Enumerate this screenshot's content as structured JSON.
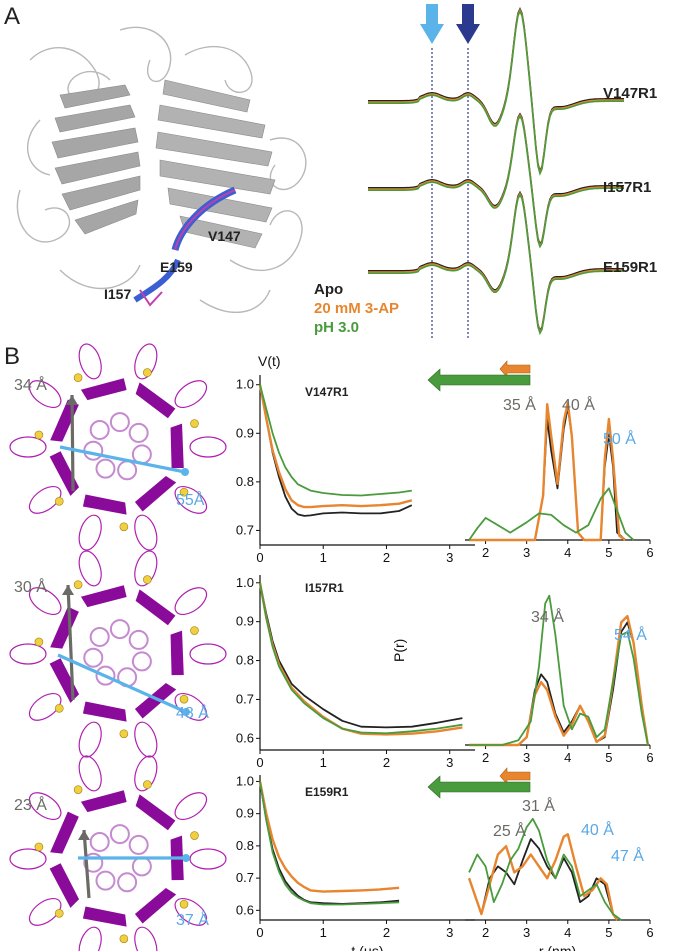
{
  "panel_a": {
    "letter": "A",
    "residue_labels": [
      "V147",
      "I157",
      "E159"
    ],
    "epr_spectra": [
      "V147R1",
      "I157R1",
      "E159R1"
    ],
    "legend": [
      {
        "label": "Apo",
        "color": "#222222"
      },
      {
        "label": "20 mM 3-AP",
        "color": "#e8862f"
      },
      {
        "label": "pH 3.0",
        "color": "#4a9b3d"
      }
    ],
    "arrow_colors": {
      "light": "#5ab4ea",
      "dark": "#2b3a8f"
    }
  },
  "panel_b": {
    "letter": "B",
    "rows": [
      {
        "mutant": "V147R1",
        "pore_short": "34 Å",
        "pore_long": "55Å",
        "peaks_gray": [
          "35 Å",
          "40 Å"
        ],
        "peaks_blue": [
          "50 Å"
        ]
      },
      {
        "mutant": "I157R1",
        "pore_short": "30 Å",
        "pore_long": "48 Å",
        "peaks_gray": [
          "34 Å"
        ],
        "peaks_blue": [
          "54 Å"
        ]
      },
      {
        "mutant": "E159R1",
        "pore_short": "23 Å",
        "pore_long": "37 Å",
        "peaks_gray": [
          "25 Å",
          "31 Å"
        ],
        "peaks_blue": [
          "40 Å",
          "47 Å"
        ]
      }
    ]
  },
  "chart_data": [
    {
      "type": "line",
      "title": "V147R1",
      "ylabel": "V(t)",
      "xlabel": "",
      "xlim": [
        0,
        3.4
      ],
      "ylim": [
        0.67,
        1.02
      ],
      "xticks": [
        0,
        1,
        2,
        3
      ],
      "yticks": [
        0.7,
        0.8,
        0.9,
        1.0
      ],
      "ytick_labels": [
        "0.7",
        "0.8",
        "0.9",
        "1.0"
      ],
      "series": [
        {
          "name": "",
          "color": "#222222",
          "x": [
            0,
            0.1,
            0.2,
            0.3,
            0.4,
            0.5,
            0.6,
            0.7,
            0.8,
            1.0,
            1.3,
            1.6,
            1.9,
            2.2,
            2.4
          ],
          "y": [
            1.0,
            0.93,
            0.86,
            0.81,
            0.77,
            0.745,
            0.733,
            0.73,
            0.731,
            0.735,
            0.737,
            0.735,
            0.735,
            0.74,
            0.752
          ]
        },
        {
          "name": "",
          "color": "#e8862f",
          "x": [
            0,
            0.1,
            0.2,
            0.3,
            0.4,
            0.5,
            0.6,
            0.7,
            0.8,
            1.0,
            1.3,
            1.6,
            1.9,
            2.2,
            2.4
          ],
          "y": [
            1.0,
            0.93,
            0.865,
            0.82,
            0.785,
            0.762,
            0.752,
            0.748,
            0.748,
            0.75,
            0.752,
            0.75,
            0.752,
            0.755,
            0.762
          ]
        },
        {
          "name": "",
          "color": "#4a9b3d",
          "x": [
            0,
            0.1,
            0.2,
            0.3,
            0.4,
            0.5,
            0.6,
            0.8,
            1.0,
            1.3,
            1.6,
            1.9,
            2.2,
            2.4
          ],
          "y": [
            1.0,
            0.95,
            0.9,
            0.86,
            0.83,
            0.81,
            0.795,
            0.782,
            0.777,
            0.773,
            0.772,
            0.775,
            0.778,
            0.782
          ]
        }
      ]
    },
    {
      "type": "line",
      "title": "I157R1",
      "ylabel": "",
      "xlabel": "",
      "xlim": [
        0,
        3.4
      ],
      "ylim": [
        0.57,
        1.02
      ],
      "xticks": [
        0,
        1,
        2,
        3
      ],
      "yticks": [
        0.6,
        0.7,
        0.8,
        0.9,
        1.0
      ],
      "ytick_labels": [
        "0.6",
        "0.7",
        "0.8",
        "0.9",
        "1.0"
      ],
      "series": [
        {
          "name": "",
          "color": "#222222",
          "x": [
            0,
            0.1,
            0.2,
            0.3,
            0.5,
            0.7,
            1.0,
            1.3,
            1.6,
            2.0,
            2.4,
            2.8,
            3.2
          ],
          "y": [
            1.0,
            0.92,
            0.85,
            0.8,
            0.74,
            0.71,
            0.675,
            0.645,
            0.63,
            0.628,
            0.63,
            0.64,
            0.652
          ]
        },
        {
          "name": "",
          "color": "#e8862f",
          "x": [
            0,
            0.1,
            0.2,
            0.3,
            0.5,
            0.7,
            1.0,
            1.3,
            1.6,
            2.0,
            2.4,
            2.8,
            3.2
          ],
          "y": [
            1.0,
            0.91,
            0.84,
            0.79,
            0.73,
            0.695,
            0.655,
            0.625,
            0.612,
            0.61,
            0.612,
            0.618,
            0.628
          ]
        },
        {
          "name": "",
          "color": "#4a9b3d",
          "x": [
            0,
            0.1,
            0.2,
            0.3,
            0.5,
            0.7,
            1.0,
            1.3,
            1.6,
            2.0,
            2.4,
            2.8,
            3.2
          ],
          "y": [
            1.0,
            0.91,
            0.835,
            0.785,
            0.725,
            0.69,
            0.652,
            0.625,
            0.615,
            0.613,
            0.618,
            0.625,
            0.635
          ]
        }
      ]
    },
    {
      "type": "line",
      "title": "E159R1",
      "ylabel": "",
      "xlabel": "t (µs)",
      "xlim": [
        0,
        3.4
      ],
      "ylim": [
        0.57,
        1.02
      ],
      "xticks": [
        0,
        1,
        2,
        3
      ],
      "yticks": [
        0.6,
        0.7,
        0.8,
        0.9,
        1.0
      ],
      "ytick_labels": [
        "0.6",
        "0.7",
        "0.8",
        "0.9",
        "1.0"
      ],
      "series": [
        {
          "name": "",
          "color": "#222222",
          "x": [
            0,
            0.1,
            0.2,
            0.3,
            0.4,
            0.5,
            0.6,
            0.7,
            0.8,
            1.0,
            1.3,
            1.6,
            1.9,
            2.2
          ],
          "y": [
            1.0,
            0.88,
            0.79,
            0.73,
            0.69,
            0.665,
            0.645,
            0.632,
            0.625,
            0.622,
            0.62,
            0.622,
            0.625,
            0.63
          ]
        },
        {
          "name": "",
          "color": "#e8862f",
          "x": [
            0,
            0.1,
            0.2,
            0.3,
            0.4,
            0.5,
            0.6,
            0.7,
            0.8,
            1.0,
            1.3,
            1.6,
            1.9,
            2.2
          ],
          "y": [
            1.0,
            0.9,
            0.82,
            0.765,
            0.73,
            0.705,
            0.685,
            0.672,
            0.662,
            0.658,
            0.66,
            0.662,
            0.665,
            0.67
          ]
        },
        {
          "name": "",
          "color": "#4a9b3d",
          "x": [
            0,
            0.1,
            0.2,
            0.3,
            0.4,
            0.5,
            0.6,
            0.7,
            0.8,
            1.0,
            1.3,
            1.6,
            1.9,
            2.2
          ],
          "y": [
            1.0,
            0.88,
            0.78,
            0.72,
            0.68,
            0.655,
            0.64,
            0.63,
            0.622,
            0.618,
            0.618,
            0.62,
            0.622,
            0.625
          ]
        }
      ]
    },
    {
      "type": "line",
      "title": "",
      "ylabel": "",
      "xlabel": "",
      "xlim": [
        1.5,
        6
      ],
      "ylim": [
        0,
        1.05
      ],
      "xticks": [
        2,
        3,
        4,
        5,
        6
      ],
      "yticks": [],
      "series": [
        {
          "name": "",
          "color": "#222222",
          "x": [
            1.6,
            3.2,
            3.4,
            3.5,
            3.6,
            3.75,
            3.9,
            4.0,
            4.1,
            4.25,
            4.4,
            4.8,
            4.9,
            5.0,
            5.1,
            5.2,
            5.4
          ],
          "y": [
            0,
            0,
            0.3,
            0.82,
            0.6,
            0.35,
            0.75,
            0.9,
            0.7,
            0.05,
            0,
            0,
            0.5,
            0.72,
            0.5,
            0.05,
            0
          ]
        },
        {
          "name": "",
          "color": "#e8862f",
          "x": [
            1.6,
            3.2,
            3.4,
            3.5,
            3.6,
            3.75,
            3.9,
            4.0,
            4.1,
            4.25,
            4.4,
            4.8,
            4.9,
            5.0,
            5.1,
            5.25,
            5.4
          ],
          "y": [
            0,
            0,
            0.3,
            0.92,
            0.7,
            0.38,
            0.8,
            0.93,
            0.7,
            0.05,
            0,
            0,
            0.55,
            0.82,
            0.55,
            0.03,
            0
          ]
        },
        {
          "name": "",
          "color": "#4a9b3d",
          "x": [
            1.6,
            1.8,
            2.0,
            2.3,
            2.6,
            3.0,
            3.3,
            3.6,
            3.9,
            4.2,
            4.5,
            4.8,
            5.0,
            5.2,
            5.4,
            5.6
          ],
          "y": [
            0,
            0.08,
            0.15,
            0.1,
            0.05,
            0.12,
            0.18,
            0.17,
            0.1,
            0.05,
            0.1,
            0.28,
            0.35,
            0.2,
            0.05,
            0
          ]
        }
      ]
    },
    {
      "type": "line",
      "title": "",
      "ylabel": "P(r)",
      "xlabel": "",
      "xlim": [
        1.5,
        6
      ],
      "ylim": [
        0,
        1.05
      ],
      "xticks": [
        2,
        3,
        4,
        5,
        6
      ],
      "yticks": [],
      "series": [
        {
          "name": "",
          "color": "#222222",
          "x": [
            1.6,
            2.8,
            3.0,
            3.2,
            3.35,
            3.5,
            3.7,
            3.9,
            4.1,
            4.3,
            4.5,
            4.7,
            4.9,
            5.1,
            5.3,
            5.45,
            5.6,
            5.8,
            5.95
          ],
          "y": [
            0,
            0,
            0.05,
            0.35,
            0.45,
            0.4,
            0.2,
            0.08,
            0.15,
            0.25,
            0.15,
            0.02,
            0.05,
            0.35,
            0.72,
            0.78,
            0.65,
            0.25,
            0
          ]
        },
        {
          "name": "",
          "color": "#e8862f",
          "x": [
            1.6,
            2.8,
            3.0,
            3.2,
            3.35,
            3.5,
            3.7,
            3.9,
            4.1,
            4.3,
            4.5,
            4.7,
            4.9,
            5.1,
            5.3,
            5.45,
            5.6,
            5.8,
            5.95
          ],
          "y": [
            0,
            0,
            0.05,
            0.32,
            0.4,
            0.35,
            0.18,
            0.06,
            0.13,
            0.25,
            0.15,
            0.02,
            0.06,
            0.4,
            0.78,
            0.82,
            0.65,
            0.25,
            0
          ]
        },
        {
          "name": "",
          "color": "#4a9b3d",
          "x": [
            1.6,
            2.4,
            2.8,
            3.1,
            3.3,
            3.45,
            3.55,
            3.7,
            3.9,
            4.1,
            4.3,
            4.5,
            4.7,
            4.9,
            5.1,
            5.3,
            5.45,
            5.6,
            5.8,
            5.95
          ],
          "y": [
            0,
            0,
            0.03,
            0.15,
            0.5,
            0.9,
            0.95,
            0.7,
            0.25,
            0.1,
            0.2,
            0.18,
            0.05,
            0.1,
            0.4,
            0.7,
            0.72,
            0.55,
            0.2,
            0
          ]
        }
      ]
    },
    {
      "type": "line",
      "title": "",
      "ylabel": "",
      "xlabel": "r (nm)",
      "xlim": [
        1.5,
        6
      ],
      "ylim": [
        0,
        1.05
      ],
      "xticks": [
        2,
        3,
        4,
        5,
        6
      ],
      "yticks": [],
      "series": [
        {
          "name": "",
          "color": "#222222",
          "x": [
            1.6,
            1.9,
            2.1,
            2.3,
            2.5,
            2.7,
            2.9,
            3.1,
            3.3,
            3.5,
            3.7,
            3.9,
            4.1,
            4.3,
            4.5,
            4.7,
            4.9,
            5.1,
            5.2
          ],
          "y": [
            0.35,
            0.05,
            0.35,
            0.45,
            0.4,
            0.3,
            0.5,
            0.68,
            0.6,
            0.45,
            0.35,
            0.52,
            0.4,
            0.15,
            0.2,
            0.35,
            0.3,
            0.05,
            0
          ]
        },
        {
          "name": "",
          "color": "#e8862f",
          "x": [
            1.6,
            1.9,
            2.1,
            2.3,
            2.5,
            2.7,
            2.9,
            3.1,
            3.3,
            3.5,
            3.7,
            3.9,
            4.0,
            4.2,
            4.4,
            4.6,
            4.8,
            4.95,
            5.1,
            5.2
          ],
          "y": [
            0.35,
            0.05,
            0.3,
            0.55,
            0.62,
            0.4,
            0.45,
            0.55,
            0.45,
            0.35,
            0.5,
            0.7,
            0.72,
            0.45,
            0.2,
            0.25,
            0.35,
            0.3,
            0.05,
            0
          ]
        },
        {
          "name": "",
          "color": "#4a9b3d",
          "x": [
            1.6,
            1.8,
            2.0,
            2.2,
            2.4,
            2.6,
            2.8,
            3.0,
            3.15,
            3.3,
            3.5,
            3.7,
            3.9,
            4.1,
            4.3,
            4.5,
            4.7,
            4.9,
            5.1,
            5.3
          ],
          "y": [
            0.4,
            0.55,
            0.45,
            0.15,
            0.3,
            0.5,
            0.6,
            0.78,
            0.85,
            0.75,
            0.5,
            0.35,
            0.55,
            0.45,
            0.2,
            0.25,
            0.3,
            0.15,
            0.05,
            0
          ]
        }
      ]
    }
  ]
}
